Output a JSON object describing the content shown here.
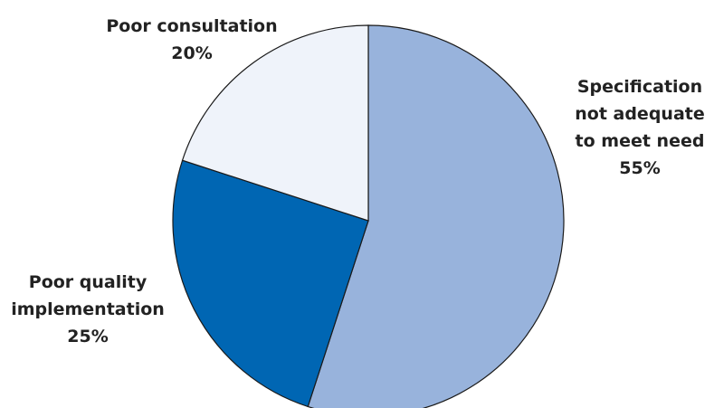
{
  "chart_data": {
    "type": "pie",
    "slices": [
      {
        "label_lines": [
          "Specification",
          "not adequate",
          "to meet need"
        ],
        "value": 55,
        "value_label": "55%",
        "color": "#98b3dc"
      },
      {
        "label_lines": [
          "Poor quality",
          "implementation"
        ],
        "value": 25,
        "value_label": "25%",
        "color": "#0066b3"
      },
      {
        "label_lines": [
          "Poor consultation"
        ],
        "value": 20,
        "value_label": "20%",
        "color": "#eff3fa"
      }
    ],
    "start": "12 o'clock",
    "direction": "clockwise",
    "legend": "none"
  }
}
